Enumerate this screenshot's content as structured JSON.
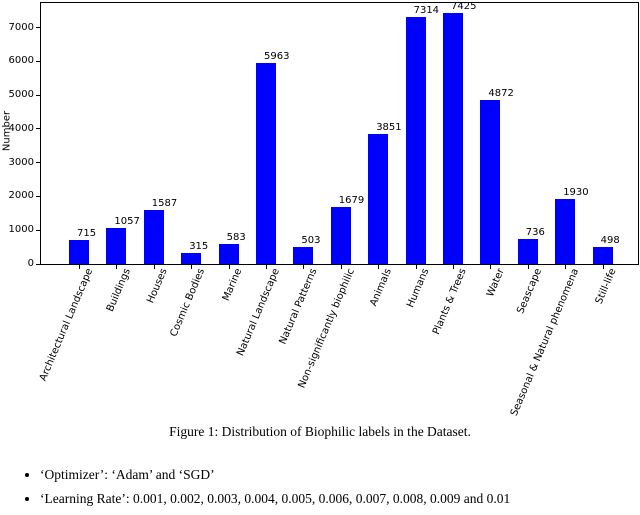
{
  "figure": {
    "caption": "Figure 1: Distribution of Biophilic labels in the Dataset."
  },
  "bullets": [
    "‘Optimizer’: ‘Adam’ and ‘SGD’",
    "‘Learning Rate’: 0.001, 0.002, 0.003, 0.004, 0.005, 0.006, 0.007, 0.008, 0.009 and 0.01"
  ],
  "chart_data": {
    "type": "bar",
    "title": "",
    "categories": [
      "Architectural Landscape",
      "Buildings",
      "Houses",
      "Cosmic Bodies",
      "Marine",
      "Natural Landscape",
      "Natural Patterns",
      "Non-significantly biophilic",
      "Animals",
      "Humans",
      "Plants & Trees",
      "Water",
      "Seascape",
      "Seasonal & Natural phenomena",
      "Still-life"
    ],
    "values": [
      715,
      1057,
      1587,
      315,
      583,
      5963,
      503,
      1679,
      3851,
      7314,
      7425,
      4872,
      736,
      1930,
      498
    ],
    "xlabel": "",
    "ylabel": "Number",
    "yticks": [
      0,
      1000,
      2000,
      3000,
      4000,
      5000,
      6000,
      7000
    ],
    "ylim": [
      0,
      7760
    ],
    "bar_color": "#0000ff",
    "grid": false,
    "value_labels": true,
    "legend": null
  }
}
